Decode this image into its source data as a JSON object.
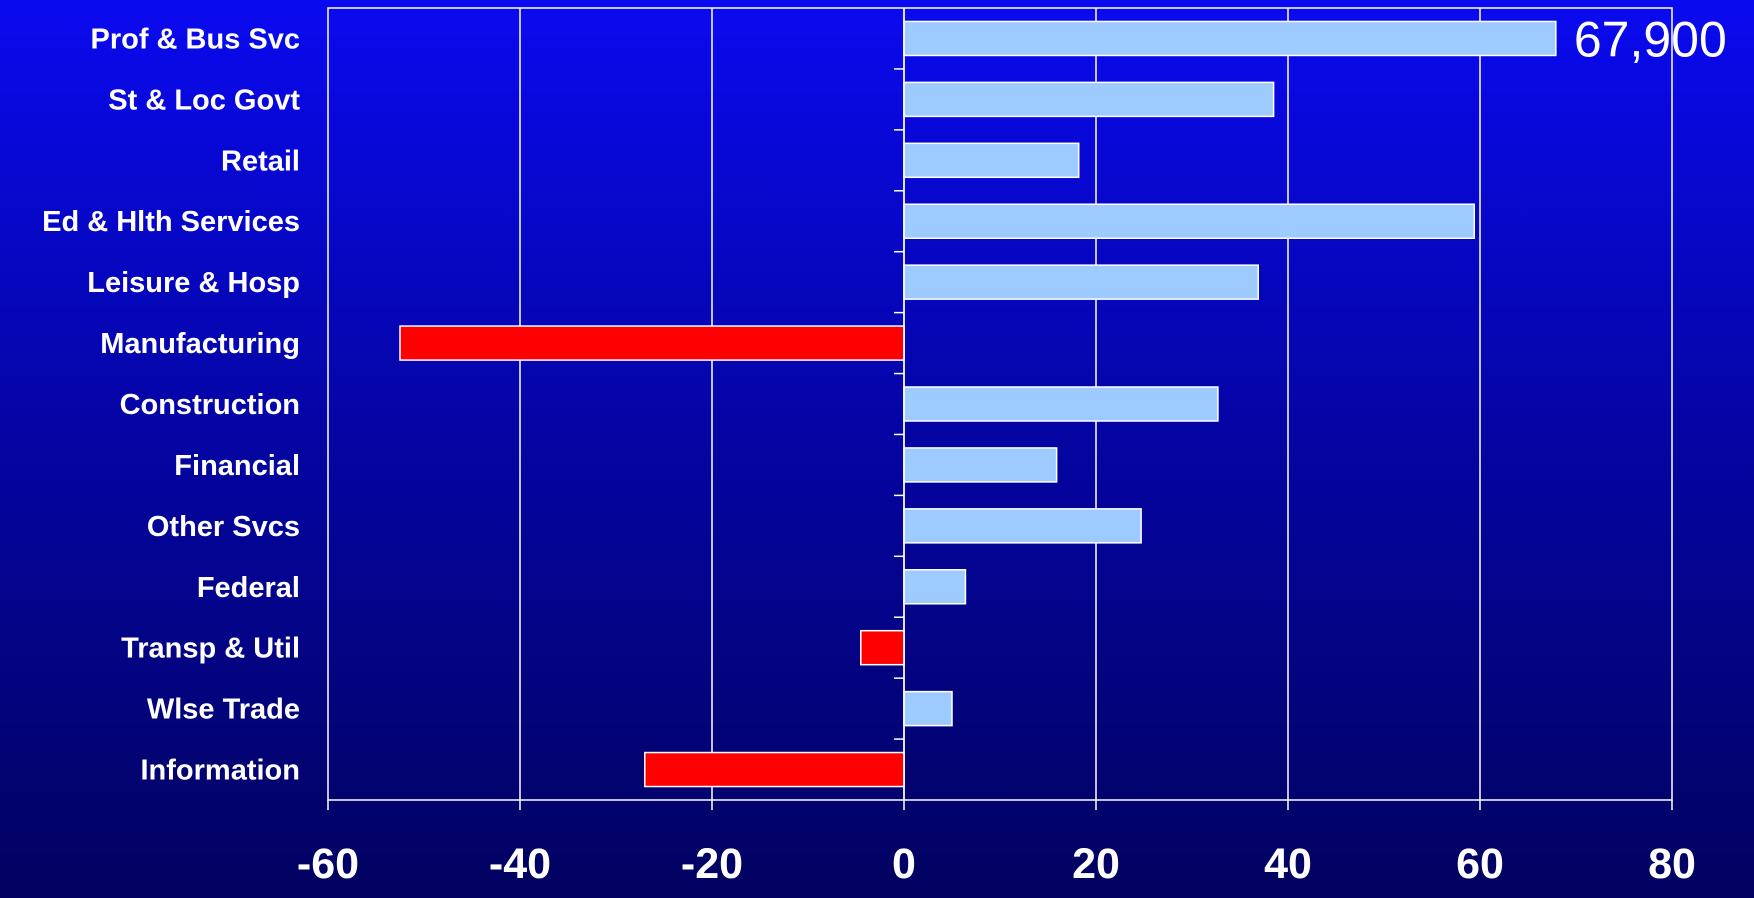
{
  "chart_data": {
    "type": "bar",
    "orientation": "horizontal",
    "categories": [
      "Prof & Bus Svc",
      "St & Loc Govt",
      "Retail",
      "Ed & Hlth Services",
      "Leisure & Hosp",
      "Manufacturing",
      "Construction",
      "Financial",
      "Other Svcs",
      "Federal",
      "Transp & Util",
      "Wlse Trade",
      "Information"
    ],
    "values": [
      67.9,
      38.5,
      18.2,
      59.4,
      36.9,
      -52.5,
      32.7,
      15.9,
      24.7,
      6.4,
      -4.5,
      5.0,
      -27.0
    ],
    "xlim": [
      -60,
      80
    ],
    "xticks": [
      -60,
      -40,
      -20,
      0,
      20,
      40,
      60,
      80
    ],
    "xtick_labels": [
      "-60",
      "-40",
      "-20",
      "0",
      "20",
      "40",
      "60",
      "80"
    ],
    "annotations": [
      {
        "category": "Prof & Bus Svc",
        "text": "67,900"
      }
    ],
    "grid": {
      "vertical": true,
      "horizontal": false
    },
    "colors": {
      "positive": "#9ecbff",
      "negative": "#ff0000",
      "bar_border": "#ffffff",
      "grid": "#ffffff",
      "text": "#ffffff",
      "background_top": "#0a0af0",
      "background_bottom": "#020260"
    },
    "title": "",
    "xlabel": "",
    "ylabel": "",
    "legend": "none"
  }
}
